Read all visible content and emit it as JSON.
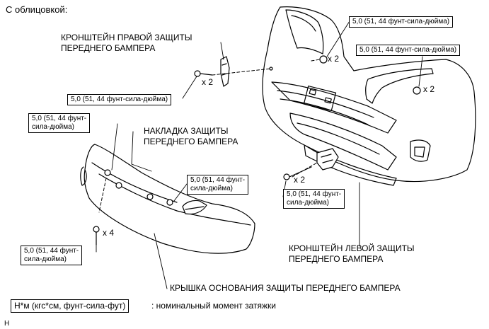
{
  "title": "С облицовкой:",
  "callouts": {
    "right_bracket": "КРОНШТЕЙН ПРАВОЙ ЗАЩИТЫ\nПЕРЕДНЕГО БАМПЕРА",
    "cover_trim": "НАКЛАДКА ЗАЩИТЫ\nПЕРЕДНЕГО БАМПЕРА",
    "left_bracket": "КРОНШТЕЙН ЛЕВОЙ ЗАЩИТЫ\nПЕРЕДНЕГО БАМПЕРА",
    "base_cover": "КРЫШКА ОСНОВАНИЯ ЗАЩИТЫ ПЕРЕДНЕГО БАМПЕРА"
  },
  "torque": {
    "one_line": "5,0 (51, 44 фунт-сила-дюйма)",
    "two_line": "5,0 (51, 44 фунт-\nсила-дюйма)"
  },
  "quantities": {
    "x2": "x 2",
    "x4": "x 4"
  },
  "legend": {
    "unit": "Н*м (кгс*см, фунт-сила-фут)",
    "description": ": номинальный момент затяжки"
  },
  "footer_code": "H"
}
